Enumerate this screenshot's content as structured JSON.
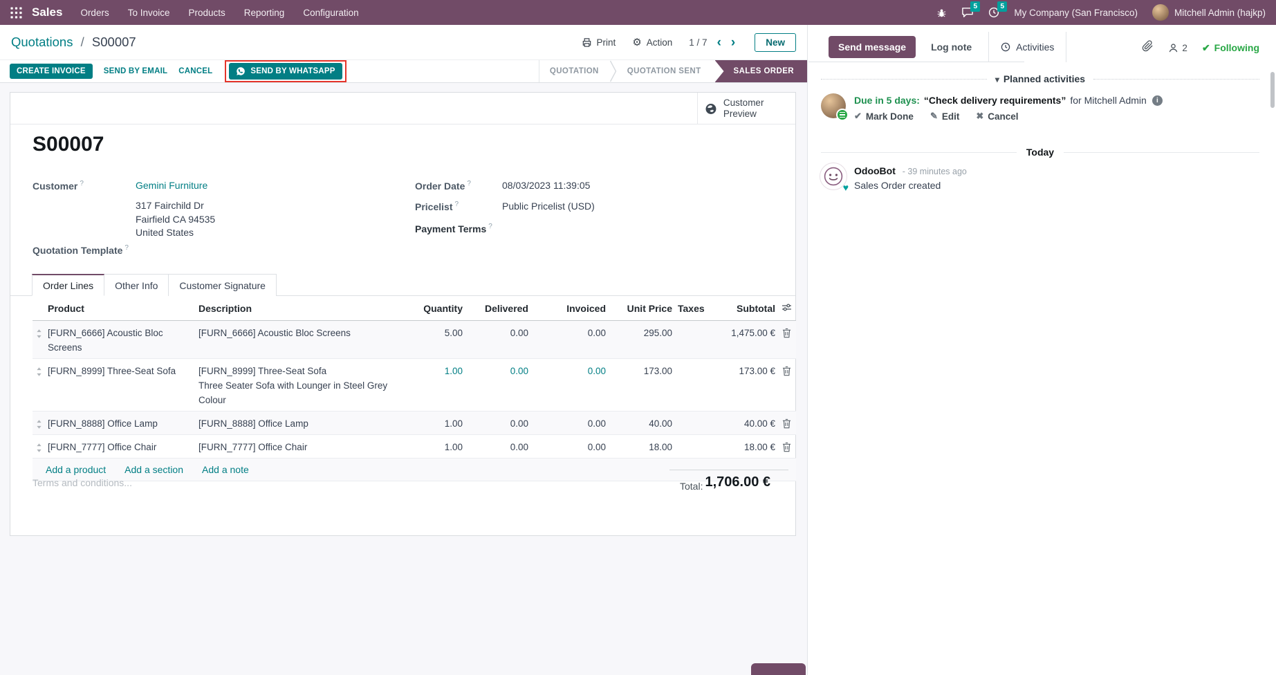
{
  "colors": {
    "brand_purple": "#714B67",
    "primary_teal": "#017E84",
    "badge_teal": "#00A09D",
    "success_green": "#28a745",
    "activity_green": "#1f9150",
    "annotation_red": "#e5352b",
    "highlight_cell": "#017E84"
  },
  "icons": {
    "gear": "⚙",
    "chevron_left": "‹",
    "chevron_right": "›",
    "check": "✔",
    "caret_down": "▾",
    "pencil": "✎",
    "cross": "✖",
    "heart": "♥",
    "info": "i",
    "names": [
      "apps-grid-icon",
      "bug-icon",
      "messages-icon",
      "activity-clock-icon",
      "printer-icon",
      "gear-icon",
      "whatsapp-icon",
      "globe-icon",
      "drag-handle-icon",
      "sliders-icon",
      "trash-icon",
      "paperclip-icon",
      "followers-person-icon",
      "odoobot-avatar"
    ]
  },
  "navbar": {
    "app_name": "Sales",
    "menu_items": [
      "Orders",
      "To Invoice",
      "Products",
      "Reporting",
      "Configuration"
    ],
    "message_badge": "5",
    "activity_badge": "5",
    "company": "My Company (San Francisco)",
    "user": "Mitchell Admin (hajkp)"
  },
  "breadcrumb": {
    "parent": "Quotations",
    "separator": "/",
    "current": "S00007"
  },
  "control_panel": {
    "print_label": "Print",
    "action_label": "Action",
    "pager": "1 / 7",
    "new_label": "New"
  },
  "statusbar": {
    "create_invoice": "CREATE INVOICE",
    "send_by_email": "SEND BY EMAIL",
    "cancel": "CANCEL",
    "send_by_whatsapp": "SEND BY WHATSAPP",
    "stages": [
      {
        "label": "QUOTATION",
        "active": false
      },
      {
        "label": "QUOTATION SENT",
        "active": false
      },
      {
        "label": "SALES ORDER",
        "active": true
      }
    ]
  },
  "form": {
    "customer_preview": "Customer Preview",
    "title": "S00007",
    "help_marker": "?",
    "customer_label": "Customer",
    "customer_name": "Gemini Furniture",
    "address_lines": [
      "317 Fairchild Dr",
      "Fairfield CA 94535",
      "United States"
    ],
    "quotation_template_label": "Quotation Template",
    "order_date_label": "Order Date",
    "order_date_value": "08/03/2023 11:39:05",
    "pricelist_label": "Pricelist",
    "pricelist_value": "Public Pricelist (USD)",
    "payment_terms_label": "Payment Terms",
    "tabs": [
      "Order Lines",
      "Other Info",
      "Customer Signature"
    ],
    "order_lines": {
      "columns": [
        "Product",
        "Description",
        "Quantity",
        "Delivered",
        "Invoiced",
        "Unit Price",
        "Taxes",
        "Subtotal"
      ],
      "rows": [
        {
          "product": "[FURN_6666] Acoustic Bloc Screens",
          "description": [
            "[FURN_6666] Acoustic Bloc Screens"
          ],
          "quantity": "5.00",
          "delivered": "0.00",
          "invoiced": "0.00",
          "unit_price": "295.00",
          "taxes": "",
          "subtotal": "1,475.00 €",
          "highlight": false
        },
        {
          "product": "[FURN_8999] Three-Seat Sofa",
          "description": [
            "[FURN_8999] Three-Seat Sofa",
            "Three Seater Sofa with Lounger in Steel Grey",
            "Colour"
          ],
          "quantity": "1.00",
          "delivered": "0.00",
          "invoiced": "0.00",
          "unit_price": "173.00",
          "taxes": "",
          "subtotal": "173.00 €",
          "highlight": true
        },
        {
          "product": "[FURN_8888] Office Lamp",
          "description": [
            "[FURN_8888] Office Lamp"
          ],
          "quantity": "1.00",
          "delivered": "0.00",
          "invoiced": "0.00",
          "unit_price": "40.00",
          "taxes": "",
          "subtotal": "40.00 €",
          "highlight": false
        },
        {
          "product": "[FURN_7777] Office Chair",
          "description": [
            "[FURN_7777] Office Chair"
          ],
          "quantity": "1.00",
          "delivered": "0.00",
          "invoiced": "0.00",
          "unit_price": "18.00",
          "taxes": "",
          "subtotal": "18.00 €",
          "highlight": false
        }
      ],
      "footer_links": [
        "Add a product",
        "Add a section",
        "Add a note"
      ]
    },
    "terms_placeholder": "Terms and conditions...",
    "total_label": "Total:",
    "total_value": "1,706.00 €"
  },
  "chatter": {
    "send_message": "Send message",
    "log_note": "Log note",
    "activities": "Activities",
    "followers_count": "2",
    "following": "Following",
    "planned_header": "Planned activities",
    "activity": {
      "due": "Due in 5 days:",
      "title": "“Check delivery requirements”",
      "assignee": "for Mitchell Admin",
      "mark_done": "Mark Done",
      "edit": "Edit",
      "cancel": "Cancel"
    },
    "today": "Today",
    "message": {
      "author": "OdooBot",
      "time": "- 39 minutes ago",
      "body": "Sales Order created"
    }
  }
}
